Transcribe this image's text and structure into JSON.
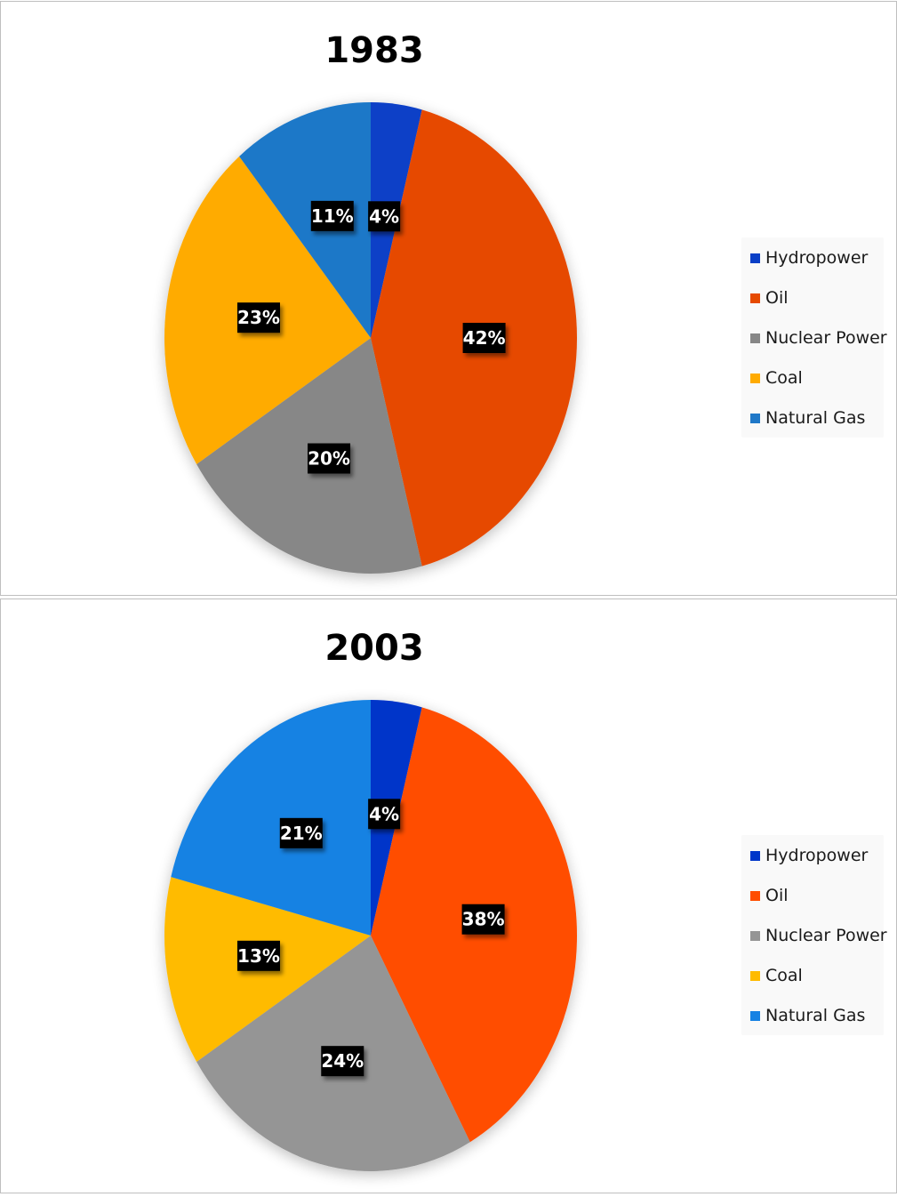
{
  "chart_data": [
    {
      "type": "pie",
      "title": "1983",
      "categories": [
        "Hydropower",
        "Oil",
        "Nuclear Power",
        "Coal",
        "Natural Gas"
      ],
      "values": [
        4,
        42,
        20,
        23,
        11
      ],
      "data_labels": [
        "4%",
        "42%",
        "20%",
        "23%",
        "11%"
      ],
      "colors": [
        "#0a3fc7",
        "#e64a00",
        "#878787",
        "#ffab00",
        "#1f78c8"
      ],
      "legend": "right"
    },
    {
      "type": "pie",
      "title": "2003",
      "categories": [
        "Hydropower",
        "Oil",
        "Nuclear Power",
        "Coal",
        "Natural Gas"
      ],
      "values": [
        4,
        38,
        24,
        13,
        21
      ],
      "data_labels": [
        "4%",
        "38%",
        "24%",
        "13%",
        "21%"
      ],
      "colors": [
        "#0036c9",
        "#ff4d00",
        "#959595",
        "#ffbb00",
        "#1682e3"
      ],
      "legend": "right"
    }
  ]
}
